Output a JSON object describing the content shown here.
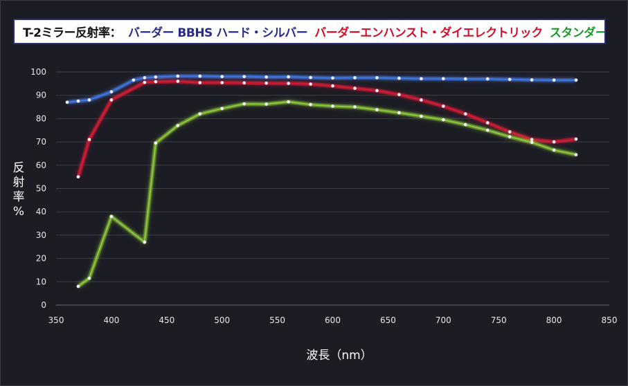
{
  "title": {
    "prefix": "T-2ミラー反射率：",
    "segments": [
      {
        "text": "バーダー BBHS ハード・シルバー",
        "color": "#2a2a8c"
      },
      {
        "text": "バーダーエンハンスト・ダイエレクトリック",
        "color": "#d0102a"
      },
      {
        "text": "スタンダードアルミニウム",
        "color": "#1a9a2a"
      }
    ]
  },
  "chart_data": {
    "type": "line",
    "xlabel": "波長（nm）",
    "ylabel": "反射率%",
    "xlim": [
      350,
      850
    ],
    "ylim": [
      0,
      100
    ],
    "xticks": [
      "350",
      "400",
      "450",
      "500",
      "550",
      "600",
      "650",
      "700",
      "750",
      "800",
      "850"
    ],
    "yticks": [
      "0",
      "10",
      "20",
      "30",
      "40",
      "50",
      "60",
      "70",
      "80",
      "90",
      "100"
    ],
    "grid": "horizontal",
    "legend": "title box",
    "series": [
      {
        "name": "バーダー BBHS ハード・シルバー",
        "color": "#3a78e8",
        "glow": "#5a8cff",
        "points": [
          [
            360,
            87
          ],
          [
            370,
            87.5
          ],
          [
            380,
            88
          ],
          [
            400,
            91.5
          ],
          [
            420,
            96.5
          ],
          [
            430,
            97.5
          ],
          [
            440,
            97.8
          ],
          [
            460,
            98.2
          ],
          [
            480,
            98.2
          ],
          [
            500,
            98
          ],
          [
            520,
            98
          ],
          [
            540,
            97.8
          ],
          [
            560,
            97.9
          ],
          [
            580,
            97.6
          ],
          [
            600,
            97.4
          ],
          [
            620,
            97.5
          ],
          [
            640,
            97.5
          ],
          [
            660,
            97.3
          ],
          [
            680,
            97.1
          ],
          [
            700,
            97.1
          ],
          [
            720,
            97
          ],
          [
            740,
            97
          ],
          [
            760,
            96.8
          ],
          [
            780,
            96.6
          ],
          [
            800,
            96.5
          ],
          [
            820,
            96.5
          ]
        ]
      },
      {
        "name": "バーダーエンハンスト・ダイエレクトリック",
        "color": "#d81830",
        "glow": "#ff2040",
        "points": [
          [
            370,
            55
          ],
          [
            380,
            71
          ],
          [
            400,
            88
          ],
          [
            430,
            95.5
          ],
          [
            440,
            95.8
          ],
          [
            460,
            96
          ],
          [
            480,
            95.4
          ],
          [
            500,
            95.4
          ],
          [
            520,
            95.3
          ],
          [
            540,
            95.2
          ],
          [
            560,
            95.1
          ],
          [
            580,
            94.8
          ],
          [
            600,
            94
          ],
          [
            620,
            93
          ],
          [
            640,
            92
          ],
          [
            660,
            90.3
          ],
          [
            680,
            88
          ],
          [
            700,
            85.3
          ],
          [
            720,
            82
          ],
          [
            740,
            78.2
          ],
          [
            760,
            74.3
          ],
          [
            780,
            71
          ],
          [
            800,
            70
          ],
          [
            820,
            71.2
          ]
        ]
      },
      {
        "name": "スタンダードアルミニウム",
        "color": "#8ac83a",
        "glow": "#a8e840",
        "points": [
          [
            370,
            8
          ],
          [
            380,
            11.5
          ],
          [
            400,
            38
          ],
          [
            430,
            27
          ],
          [
            440,
            69.5
          ],
          [
            460,
            77
          ],
          [
            480,
            82
          ],
          [
            500,
            84.3
          ],
          [
            520,
            86.3
          ],
          [
            540,
            86.2
          ],
          [
            560,
            87.2
          ],
          [
            580,
            86
          ],
          [
            600,
            85.3
          ],
          [
            620,
            85
          ],
          [
            640,
            83.8
          ],
          [
            660,
            82.5
          ],
          [
            680,
            81
          ],
          [
            700,
            79.5
          ],
          [
            720,
            77.4
          ],
          [
            740,
            75
          ],
          [
            760,
            72.2
          ],
          [
            780,
            69.8
          ],
          [
            800,
            66.5
          ],
          [
            820,
            64.5
          ]
        ]
      }
    ]
  }
}
